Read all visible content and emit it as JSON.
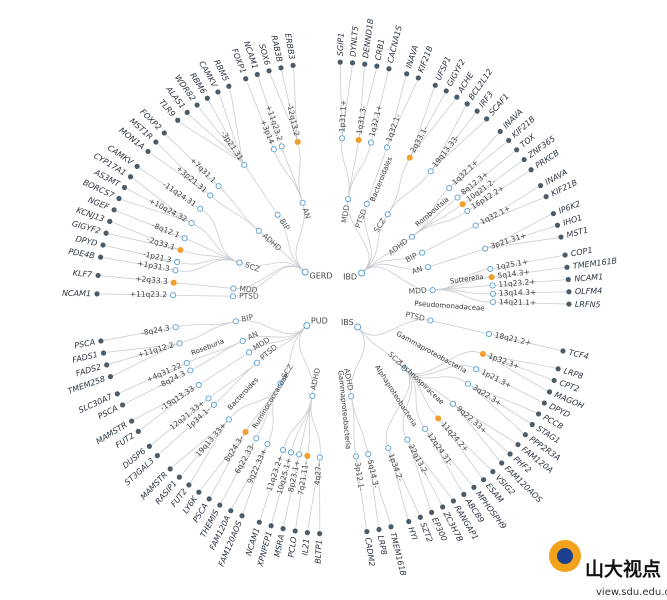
{
  "hubs": [
    {
      "label": "GERD",
      "traits": [
        {
          "label": "PTSD",
          "loci": [
            {
              "label": "+11q23.2",
              "genes": [
                "NCAM1"
              ]
            }
          ]
        },
        {
          "label": "MDD",
          "loci": [
            {
              "label": "+2q33.3",
              "genes": [
                "KLF7"
              ],
              "color": "#f0a030"
            }
          ]
        },
        {
          "label": "SCZ",
          "loci": [
            {
              "label": "+1p31.3",
              "genes": [
                "PDE4B"
              ]
            },
            {
              "label": "-1p21.3",
              "genes": [
                "DPYD"
              ]
            },
            {
              "label": "-2q33.1",
              "genes": [
                "GIGYF2",
                "KCNJ13"
              ],
              "color": "#f0a030"
            },
            {
              "label": "-8q12.1",
              "genes": [
                "NGEF"
              ]
            },
            {
              "label": "+10q24.32",
              "genes": [
                "BORCS7",
                "AS3MT",
                "CYP17A1"
              ]
            },
            {
              "label": "-11q24.31",
              "genes": [
                "CAMKV"
              ]
            }
          ]
        },
        {
          "label": "ADHD",
          "loci": [
            {
              "label": "+3p21.31",
              "genes": [
                "MON1A",
                "MST1R"
              ]
            },
            {
              "label": "+7q31.1",
              "genes": [
                "FOXP2"
              ]
            }
          ]
        },
        {
          "label": "BIP",
          "loci": [
            {
              "label": "-3p21.31",
              "genes": [
                "TLR9",
                "ALAS1",
                "WDR82",
                "RBM6",
                "CAMKV",
                "RBM5"
              ]
            }
          ]
        },
        {
          "label": "AN",
          "loci": [
            {
              "label": "+3p14",
              "genes": [
                "FOXP1"
              ]
            },
            {
              "label": "+11q23.2",
              "genes": [
                "NCAM1"
              ]
            },
            {
              "label": "-12q13.2",
              "genes": [
                "SOX6",
                "RAB3B",
                "ERBB3"
              ],
              "color": "#f0a030"
            }
          ]
        }
      ]
    },
    {
      "label": "IBD",
      "traits": [
        {
          "label": "MDD",
          "loci": [
            {
              "label": "1p31.1+",
              "genes": [
                "SGIP1",
                "DYNLT5"
              ]
            },
            {
              "label": "1q31.3-",
              "genes": [
                "DENND1B",
                "CRB1"
              ],
              "color": "#f0a030"
            },
            {
              "label": "1q32.1+",
              "genes": [
                "CACNA1S"
              ]
            }
          ]
        },
        {
          "label": "PTSD",
          "loci": [
            {
              "label": "1q32.1-",
              "genes": [
                "INAVA",
                "KIF21B"
              ],
              "taxon": "Bacteroidales"
            }
          ]
        },
        {
          "label": "SCZ",
          "loci": [
            {
              "label": "2q33.1-",
              "genes": [
                "UFSP1",
                "GIGYF2",
                "ACHE"
              ],
              "color": "#f0a030"
            },
            {
              "label": "19q13.33-",
              "genes": [
                "BCL2L12",
                "IRF3",
                "SCAF1"
              ]
            }
          ]
        },
        {
          "label": "ADHD",
          "loci": [
            {
              "label": "1q32.1+",
              "genes": [
                "INAVA",
                "KIF21B"
              ],
              "taxon": "Romboutsia"
            },
            {
              "label": "8q12.3+",
              "genes": [
                "TOX"
              ]
            },
            {
              "label": "10q21.2-",
              "genes": [
                "ZNF365"
              ],
              "color": "#f0a030"
            },
            {
              "label": "16p12.2+",
              "genes": [
                "PRKCB"
              ]
            }
          ]
        },
        {
          "label": "BIP",
          "loci": [
            {
              "label": "1q32.1+",
              "genes": [
                "INAVA",
                "KIF21B"
              ]
            }
          ]
        },
        {
          "label": "AN",
          "loci": [
            {
              "label": "3p21.31+",
              "genes": [
                "IP6K2",
                "IHO1",
                "MST1"
              ]
            }
          ]
        },
        {
          "label": "MDD",
          "loci": [
            {
              "label": "1q25.1+",
              "genes": [
                "COP1"
              ],
              "taxon": "Sutterella"
            },
            {
              "label": "5q14.3+",
              "genes": [
                "TMEM161B"
              ],
              "color": "#f0a030"
            },
            {
              "label": "11q23.2+",
              "genes": [
                "NCAM1"
              ]
            },
            {
              "label": "13q14.3+",
              "genes": [
                "OLFM4"
              ]
            },
            {
              "label": "14q21.1+",
              "genes": [
                "LRFN5"
              ],
              "taxon": "Pseudomonadaceae"
            }
          ]
        }
      ]
    },
    {
      "label": "IBS",
      "traits": [
        {
          "label": "PTSD",
          "loci": [
            {
              "label": "18q21.2+",
              "genes": [
                "TCF4"
              ]
            }
          ]
        },
        {
          "label": "SCZ",
          "loci": [
            {
              "label": "1p32.3+",
              "genes": [
                "LRP8",
                "CPT2",
                "MAGOH"
              ],
              "color": "#f0a030"
            },
            {
              "label": "1p21.3+",
              "genes": [
                "DPYD"
              ],
              "taxon": "Gammaproteobacteria"
            },
            {
              "label": "3q22.3+",
              "genes": [
                "PCCB",
                "STAG1",
                "PPP2R3A"
              ]
            },
            {
              "label": "9q22.33+",
              "genes": [
                "FAM120A",
                "PHF2",
                "FAM120AOS"
              ],
              "taxon": "Lachnospiraceae"
            },
            {
              "label": "11q24.2+",
              "genes": [
                "VSIG2",
                "ESAM"
              ],
              "color": "#f0a030"
            },
            {
              "label": "12q24.31-",
              "genes": [
                "MPHOSPH9",
                "ABCB9"
              ],
              "taxon": "Alphaproteobacteria"
            },
            {
              "label": "22q13.2-",
              "genes": [
                "RANGAP1",
                "ZC3H7B",
                "EP300"
              ]
            },
            {
              "label": "1p34.2-",
              "genes": [
                "SZT2",
                "HYI"
              ]
            }
          ]
        },
        {
          "label": "ADHD",
          "loci": [
            {
              "label": "5q14.3-",
              "genes": [
                "TMEM161B",
                "LRP8"
              ]
            },
            {
              "label": "3p12.1-",
              "genes": [
                "CADM2"
              ],
              "taxon": "Gammaproteobacteria"
            }
          ]
        }
      ]
    },
    {
      "label": "PUD",
      "traits": [
        {
          "label": "ADHD",
          "loci": [
            {
              "label": "4q27-",
              "genes": [
                "BLTP1",
                "IL21"
              ]
            },
            {
              "label": "7q21.11-",
              "genes": [
                "PCLO"
              ],
              "color": "#f0a030"
            },
            {
              "label": "8p23.1+",
              "genes": [
                "MSRA"
              ]
            },
            {
              "label": "10q25.1+",
              "genes": [
                "XPNPEP1"
              ]
            },
            {
              "label": "11q23.2+",
              "genes": [
                "NCAM1"
              ]
            }
          ]
        },
        {
          "label": "SCZ",
          "loci": [
            {
              "label": "9q22.33+",
              "genes": [
                "FAM120AOS",
                "FAM120A"
              ]
            },
            {
              "label": "6q22.33-",
              "genes": [
                "THEMIS"
              ],
              "taxon": "Ruminococcaceae"
            },
            {
              "label": "8q24.3-",
              "genes": [
                "PSCA",
                "LY6K"
              ],
              "color": "#f0a030"
            },
            {
              "label": "19q13.33+",
              "genes": [
                "FUT2",
                "RASIP1",
                "MAMSTR"
              ],
              "taxon": "Bacteroides"
            }
          ]
        },
        {
          "label": "PTSD",
          "loci": [
            {
              "label": "1p34.1-",
              "genes": [
                "ST3GAL3"
              ]
            },
            {
              "label": "12q21.33+",
              "genes": [
                "DUSP6"
              ]
            }
          ]
        },
        {
          "label": "MDD",
          "loci": [
            {
              "label": "-19q13.33",
              "genes": [
                "FUT2",
                "MAMSTR"
              ]
            }
          ]
        },
        {
          "label": "AN",
          "loci": [
            {
              "label": "-8q24.3",
              "genes": [
                "PSCA"
              ]
            },
            {
              "label": "+4q31.22",
              "genes": [
                "SLC30A7"
              ],
              "taxon": "Roseburia"
            }
          ]
        },
        {
          "label": "BIP",
          "loci": [
            {
              "label": "+11q12.2",
              "genes": [
                "TMEM258",
                "FADS2",
                "FADS1"
              ]
            },
            {
              "label": "-8q24.3",
              "genes": [
                "PSCA"
              ]
            }
          ]
        }
      ]
    }
  ],
  "watermark": {
    "title": "山大视点",
    "url": "view.sdu.edu.cn"
  }
}
